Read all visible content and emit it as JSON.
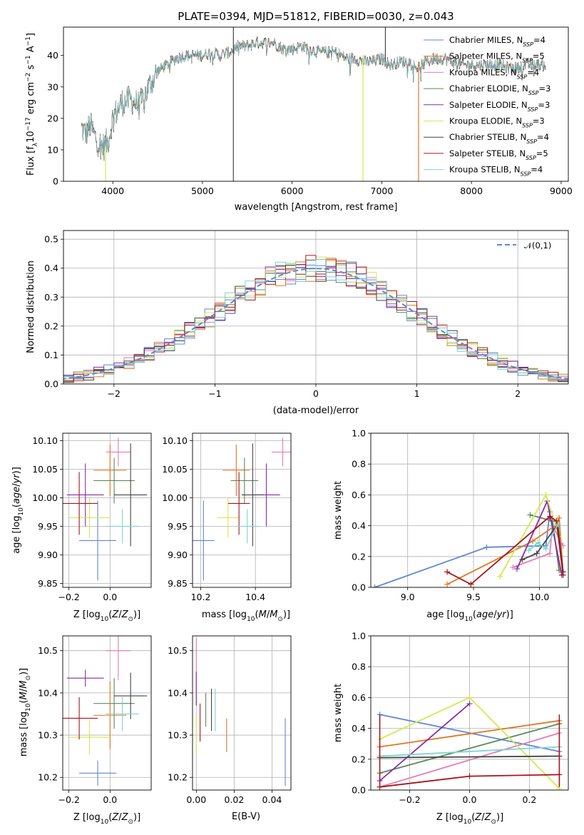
{
  "figure_title": "PLATE=0394, MJD=51812, FIBERID=0030, z=0.043",
  "colors": {
    "CM": "#5f86d8",
    "SM": "#e2771f",
    "KM": "#e67bb5",
    "CE": "#5a8a5a",
    "SE": "#8a2aa6",
    "KE": "#d5e84e",
    "CS": "#444444",
    "SS": "#aa141b",
    "KS": "#79d6d4"
  },
  "chart_data": [
    {
      "id": "spectrum",
      "type": "line",
      "title": "PLATE=0394, MJD=51812, FIBERID=0030, z=0.043",
      "xlabel": "wavelength [Angstrom, rest frame]",
      "ylabel": "Flux [f_λ 10^-17 erg cm^-2 s^-1 A^-1]",
      "xlim": [
        3450,
        9080
      ],
      "ylim": [
        0,
        49
      ],
      "xticks": [
        4000,
        5000,
        6000,
        7000,
        8000,
        9000
      ],
      "yticks": [
        0,
        10,
        20,
        30,
        40
      ],
      "legend_position": "upper right",
      "legend": [
        {
          "key": "CM",
          "text": "Chabrier MILES, N",
          "sub": "SSP",
          "tail": "=4"
        },
        {
          "key": "SM",
          "text": "Salpeter MILES, N",
          "sub": "SSP",
          "tail": "=5"
        },
        {
          "key": "KM",
          "text": "Kroupa MILES, N",
          "sub": "SSP",
          "tail": "=4"
        },
        {
          "key": "CE",
          "text": "Chabrier ELODIE, N",
          "sub": "SSP",
          "tail": "=3"
        },
        {
          "key": "SE",
          "text": "Salpeter ELODIE, N",
          "sub": "SSP",
          "tail": "=3"
        },
        {
          "key": "KE",
          "text": "Kroupa ELODIE, N",
          "sub": "SSP",
          "tail": "=3"
        },
        {
          "key": "CS",
          "text": "Chabrier STELIB, N",
          "sub": "SSP",
          "tail": "=4"
        },
        {
          "key": "SS",
          "text": "Salpeter STELIB, N",
          "sub": "SSP",
          "tail": "=5"
        },
        {
          "key": "KS",
          "text": "Kroupa STELIB, N",
          "sub": "SSP",
          "tail": "=4"
        }
      ],
      "continuum": [
        [
          3650,
          17
        ],
        [
          3700,
          15
        ],
        [
          3750,
          18
        ],
        [
          3800,
          14
        ],
        [
          3850,
          12
        ],
        [
          3900,
          11
        ],
        [
          3950,
          13
        ],
        [
          4000,
          20
        ],
        [
          4100,
          25
        ],
        [
          4200,
          26
        ],
        [
          4300,
          24
        ],
        [
          4400,
          30
        ],
        [
          4500,
          35
        ],
        [
          4600,
          37
        ],
        [
          4700,
          39
        ],
        [
          4800,
          40
        ],
        [
          4900,
          40
        ],
        [
          5000,
          40
        ],
        [
          5100,
          41
        ],
        [
          5200,
          40
        ],
        [
          5300,
          41
        ],
        [
          5400,
          43
        ],
        [
          5500,
          43
        ],
        [
          5600,
          44
        ],
        [
          5700,
          44
        ],
        [
          5800,
          44
        ],
        [
          5900,
          42
        ],
        [
          6000,
          42
        ],
        [
          6100,
          43
        ],
        [
          6200,
          42
        ],
        [
          6300,
          41
        ],
        [
          6400,
          41
        ],
        [
          6500,
          41
        ],
        [
          6600,
          39
        ],
        [
          6700,
          39
        ],
        [
          6800,
          38
        ],
        [
          6900,
          38
        ],
        [
          7000,
          39
        ],
        [
          7100,
          37
        ],
        [
          7200,
          38
        ],
        [
          7300,
          38
        ],
        [
          7400,
          36
        ],
        [
          7500,
          38
        ],
        [
          7600,
          39
        ],
        [
          7700,
          39
        ],
        [
          7800,
          38
        ],
        [
          7900,
          37
        ],
        [
          8000,
          37
        ],
        [
          8100,
          37
        ],
        [
          8200,
          37
        ],
        [
          8300,
          37
        ],
        [
          8400,
          36
        ],
        [
          8500,
          36
        ],
        [
          8600,
          37
        ],
        [
          8700,
          37
        ],
        [
          8800,
          37
        ]
      ],
      "spikes": [
        {
          "x": 3920,
          "y0": 0,
          "y1": 11,
          "key": "KE"
        },
        {
          "x": 5345,
          "y0": 0,
          "y1": 49,
          "key": "CS"
        },
        {
          "x": 6790,
          "y0": 0,
          "y1": 40,
          "key": "KE"
        },
        {
          "x": 7040,
          "y0": 38,
          "y1": 49,
          "key": "CS"
        },
        {
          "x": 7410,
          "y0": 0,
          "y1": 38,
          "key": "SM"
        }
      ]
    },
    {
      "id": "residuals",
      "type": "histogram",
      "xlabel": "(data-model)/error",
      "ylabel": "Normed distribution",
      "xlim": [
        -2.5,
        2.5
      ],
      "ylim": [
        0,
        0.53
      ],
      "xticks": [
        -2,
        -1,
        0,
        1,
        2
      ],
      "yticks": [
        0.0,
        0.1,
        0.2,
        0.3,
        0.4,
        0.5
      ],
      "grid": true,
      "legend": [
        "𝒩(0,1)"
      ],
      "reference_curve": "N(0,1)",
      "bin_width": 0.1
    },
    {
      "id": "age_vs_Z",
      "type": "errorbar",
      "xlabel": "Z [log10(Z/Z☉)]",
      "ylabel": "age [log10(age/yr)]",
      "xlim": [
        -0.23,
        0.2
      ],
      "ylim": [
        9.843,
        10.113
      ],
      "xticks": [
        -0.2,
        0.0
      ],
      "yticks": [
        9.85,
        9.9,
        9.95,
        10.0,
        10.05,
        10.1
      ],
      "grid": true,
      "points": [
        {
          "key": "CM",
          "x": -0.06,
          "xerr": 0.09,
          "y": 9.925,
          "yerr": 0.07
        },
        {
          "key": "SM",
          "x": 0.0,
          "xerr": 0.08,
          "y": 10.048,
          "yerr": 0.045
        },
        {
          "key": "KM",
          "x": 0.04,
          "xerr": 0.06,
          "y": 10.08,
          "yerr": 0.025
        },
        {
          "key": "CE",
          "x": 0.02,
          "xerr": 0.1,
          "y": 10.03,
          "yerr": 0.04
        },
        {
          "key": "SE",
          "x": -0.12,
          "xerr": 0.09,
          "y": 10.005,
          "yerr": 0.055
        },
        {
          "key": "KE",
          "x": -0.1,
          "xerr": 0.1,
          "y": 9.965,
          "yerr": 0.035
        },
        {
          "key": "CS",
          "x": 0.1,
          "xerr": 0.08,
          "y": 10.005,
          "yerr": 0.09
        },
        {
          "key": "SS",
          "x": -0.15,
          "xerr": 0.09,
          "y": 9.99,
          "yerr": 0.055
        },
        {
          "key": "KS",
          "x": 0.06,
          "xerr": 0.08,
          "y": 9.95,
          "yerr": 0.03
        }
      ]
    },
    {
      "id": "age_vs_mass",
      "type": "errorbar",
      "xlabel": "mass [log10(M/M☉)]",
      "ylabel": "",
      "xlim": [
        10.17,
        10.53
      ],
      "ylim": [
        9.843,
        10.113
      ],
      "xticks": [
        10.2,
        10.4
      ],
      "yticks": [
        9.85,
        9.9,
        9.95,
        10.0,
        10.05,
        10.1
      ],
      "grid": true,
      "points": [
        {
          "key": "CM",
          "x": 10.21,
          "xerr": 0.04,
          "y": 9.925,
          "yerr": 0.07
        },
        {
          "key": "SM",
          "x": 10.33,
          "xerr": 0.05,
          "y": 10.048,
          "yerr": 0.045
        },
        {
          "key": "KM",
          "x": 10.5,
          "xerr": 0.04,
          "y": 10.08,
          "yerr": 0.025
        },
        {
          "key": "CE",
          "x": 10.36,
          "xerr": 0.05,
          "y": 10.03,
          "yerr": 0.04
        },
        {
          "key": "SE",
          "x": 10.44,
          "xerr": 0.05,
          "y": 10.005,
          "yerr": 0.055
        },
        {
          "key": "KE",
          "x": 10.3,
          "xerr": 0.04,
          "y": 9.965,
          "yerr": 0.035
        },
        {
          "key": "CS",
          "x": 10.39,
          "xerr": 0.04,
          "y": 10.005,
          "yerr": 0.09
        },
        {
          "key": "SS",
          "x": 10.34,
          "xerr": 0.04,
          "y": 9.99,
          "yerr": 0.055
        },
        {
          "key": "KS",
          "x": 10.37,
          "xerr": 0.04,
          "y": 9.95,
          "yerr": 0.03
        }
      ]
    },
    {
      "id": "massweight_vs_age",
      "type": "line",
      "xlabel": "age [log10(age/yr)]",
      "ylabel": "mass weight",
      "xlim": [
        8.72,
        10.22
      ],
      "ylim": [
        0,
        1.0
      ],
      "xticks": [
        9.0,
        9.5,
        10.0
      ],
      "yticks": [
        0.0,
        0.2,
        0.4,
        0.6,
        0.8,
        1.0
      ],
      "grid": true,
      "series": [
        {
          "key": "CM",
          "x": [
            8.75,
            9.6,
            10.05,
            10.08
          ],
          "y": [
            0.0,
            0.26,
            0.27,
            0.49
          ]
        },
        {
          "key": "SM",
          "x": [
            9.3,
            9.95,
            10.12,
            10.15,
            10.18
          ],
          "y": [
            0.02,
            0.3,
            0.4,
            0.45,
            0.1
          ]
        },
        {
          "key": "KM",
          "x": [
            9.8,
            10.08,
            10.1,
            10.18
          ],
          "y": [
            0.13,
            0.22,
            0.4,
            0.27
          ]
        },
        {
          "key": "CE",
          "x": [
            9.93,
            10.1,
            10.15
          ],
          "y": [
            0.47,
            0.43,
            0.11
          ]
        },
        {
          "key": "SE",
          "x": [
            9.83,
            10.06,
            10.17
          ],
          "y": [
            0.12,
            0.56,
            0.08
          ]
        },
        {
          "key": "KE",
          "x": [
            9.7,
            10.05,
            10.15
          ],
          "y": [
            0.07,
            0.6,
            0.33
          ]
        },
        {
          "key": "CS",
          "x": [
            9.87,
            9.98,
            10.14,
            10.18
          ],
          "y": [
            0.18,
            0.22,
            0.41,
            0.1
          ]
        },
        {
          "key": "SS",
          "x": [
            9.3,
            9.48,
            10.08,
            10.13,
            10.18
          ],
          "y": [
            0.1,
            0.02,
            0.46,
            0.43,
            0.08
          ]
        },
        {
          "key": "KS",
          "x": [
            9.92,
            9.99,
            10.05,
            10.14
          ],
          "y": [
            0.24,
            0.29,
            0.25,
            0.41
          ]
        }
      ]
    },
    {
      "id": "mass_vs_Z",
      "type": "errorbar",
      "xlabel": "Z [log10(Z/Z☉)]",
      "ylabel": "mass [log10(M/M☉)]",
      "xlim": [
        -0.23,
        0.2
      ],
      "ylim": [
        10.17,
        10.535
      ],
      "xticks": [
        -0.2,
        0.0
      ],
      "yticks": [
        10.2,
        10.3,
        10.4,
        10.5
      ],
      "grid": true,
      "points": [
        {
          "key": "CM",
          "x": -0.06,
          "xerr": 0.09,
          "y": 10.21,
          "yerr": 0.03
        },
        {
          "key": "SM",
          "x": 0.0,
          "xerr": 0.08,
          "y": 10.347,
          "yerr": 0.08
        },
        {
          "key": "KM",
          "x": 0.04,
          "xerr": 0.06,
          "y": 10.5,
          "yerr": 0.07
        },
        {
          "key": "CE",
          "x": 0.02,
          "xerr": 0.1,
          "y": 10.375,
          "yerr": 0.06
        },
        {
          "key": "SE",
          "x": -0.12,
          "xerr": 0.09,
          "y": 10.435,
          "yerr": 0.02
        },
        {
          "key": "KE",
          "x": -0.1,
          "xerr": 0.1,
          "y": 10.295,
          "yerr": 0.04
        },
        {
          "key": "CS",
          "x": 0.1,
          "xerr": 0.08,
          "y": 10.393,
          "yerr": 0.055
        },
        {
          "key": "SS",
          "x": -0.15,
          "xerr": 0.09,
          "y": 10.34,
          "yerr": 0.05
        },
        {
          "key": "KS",
          "x": 0.06,
          "xerr": 0.08,
          "y": 10.35,
          "yerr": 0.04
        }
      ]
    },
    {
      "id": "mass_vs_ebv",
      "type": "errorbar",
      "xlabel": "E(B-V)",
      "ylabel": "",
      "xlim": [
        -0.002,
        0.05
      ],
      "ylim": [
        10.17,
        10.535
      ],
      "xticks": [
        0.0,
        0.02,
        0.04
      ],
      "yticks": [
        10.2,
        10.3,
        10.4,
        10.5
      ],
      "grid": true,
      "points": [
        {
          "key": "CM",
          "x": 0.047,
          "y": 10.26,
          "yerr": 0.08
        },
        {
          "key": "SM",
          "x": 0.016,
          "y": 10.3,
          "yerr": 0.04
        },
        {
          "key": "KM",
          "x": 0.0,
          "y": 10.45,
          "yerr": 0.08
        },
        {
          "key": "CE",
          "x": 0.005,
          "y": 10.36,
          "yerr": 0.04
        },
        {
          "key": "SE",
          "x": 0.0,
          "y": 10.41,
          "yerr": 0.04
        },
        {
          "key": "KE",
          "x": 0.0,
          "y": 10.3,
          "yerr": 0.045
        },
        {
          "key": "CS",
          "x": 0.008,
          "y": 10.36,
          "yerr": 0.05
        },
        {
          "key": "SS",
          "x": 0.002,
          "y": 10.33,
          "yerr": 0.045
        },
        {
          "key": "KS",
          "x": 0.01,
          "y": 10.36,
          "yerr": 0.05
        }
      ]
    },
    {
      "id": "massweight_vs_Z",
      "type": "line",
      "xlabel": "Z [log10(Z/Z☉)]",
      "ylabel": "mass weight",
      "xlim": [
        -0.33,
        0.33
      ],
      "ylim": [
        0,
        1.0
      ],
      "xticks": [
        -0.2,
        0.0,
        0.2
      ],
      "yticks": [
        0.0,
        0.2,
        0.4,
        0.6,
        0.8,
        1.0
      ],
      "grid": true,
      "series": [
        {
          "key": "CM",
          "x": [
            -0.3,
            0.3
          ],
          "y": [
            0.49,
            0.25
          ]
        },
        {
          "key": "SM",
          "x": [
            -0.3,
            0.3
          ],
          "y": [
            0.28,
            0.45
          ]
        },
        {
          "key": "KM",
          "x": [
            -0.3,
            0.3
          ],
          "y": [
            0.02,
            0.37
          ]
        },
        {
          "key": "CE",
          "x": [
            -0.3,
            0.3
          ],
          "y": [
            0.11,
            0.43
          ]
        },
        {
          "key": "SE",
          "x": [
            -0.3,
            0.0
          ],
          "y": [
            0.06,
            0.56
          ]
        },
        {
          "key": "KE",
          "x": [
            -0.3,
            0.0,
            0.3
          ],
          "y": [
            0.33,
            0.6,
            0.01
          ]
        },
        {
          "key": "CS",
          "x": [
            -0.3,
            0.3
          ],
          "y": [
            0.21,
            0.22
          ]
        },
        {
          "key": "SS",
          "x": [
            -0.3,
            0.0,
            0.3
          ],
          "y": [
            0.02,
            0.09,
            0.1
          ]
        },
        {
          "key": "KS",
          "x": [
            -0.3,
            0.3
          ],
          "y": [
            0.22,
            0.28
          ]
        }
      ],
      "vertical_ticks_at_x": [
        -0.3,
        0.3
      ]
    }
  ]
}
